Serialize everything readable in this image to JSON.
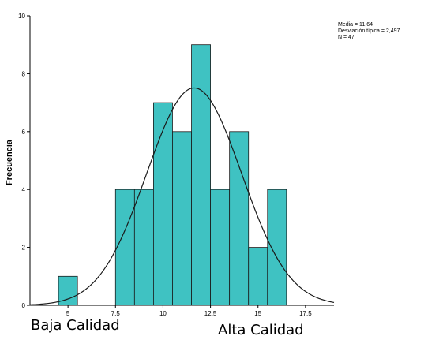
{
  "chart_data": {
    "type": "bar",
    "ylabel": "Frecuencia",
    "xlim": [
      3,
      19
    ],
    "ylim": [
      0,
      10
    ],
    "xticks": [
      {
        "value": 5,
        "label": "5"
      },
      {
        "value": 7.5,
        "label": "7,5"
      },
      {
        "value": 10,
        "label": "10"
      },
      {
        "value": 12.5,
        "label": "12,5"
      },
      {
        "value": 15,
        "label": "15"
      },
      {
        "value": 17.5,
        "label": "17,5"
      }
    ],
    "yticks": [
      {
        "value": 0,
        "label": "0"
      },
      {
        "value": 2,
        "label": "2"
      },
      {
        "value": 4,
        "label": "4"
      },
      {
        "value": 6,
        "label": "6"
      },
      {
        "value": 8,
        "label": "8"
      },
      {
        "value": 10,
        "label": "10"
      }
    ],
    "bins": [
      {
        "start": 4.5,
        "end": 5.5,
        "value": 1
      },
      {
        "start": 7.5,
        "end": 8.5,
        "value": 4
      },
      {
        "start": 8.5,
        "end": 9.5,
        "value": 4
      },
      {
        "start": 9.5,
        "end": 10.5,
        "value": 7
      },
      {
        "start": 10.5,
        "end": 11.5,
        "value": 6
      },
      {
        "start": 11.5,
        "end": 12.5,
        "value": 9
      },
      {
        "start": 12.5,
        "end": 13.5,
        "value": 4
      },
      {
        "start": 13.5,
        "end": 14.5,
        "value": 6
      },
      {
        "start": 14.5,
        "end": 15.5,
        "value": 2
      },
      {
        "start": 15.5,
        "end": 16.5,
        "value": 4
      }
    ],
    "normal_curve": {
      "mean": 11.64,
      "sd": 2.497,
      "n": 47,
      "bin_width": 1
    },
    "stats": [
      "Media = 11,64",
      "Desviación típica = 2,497",
      "N = 47"
    ],
    "annotations": {
      "low": "Baja Calidad",
      "high": "Alta Calidad"
    },
    "colors": {
      "bar_fill": "#3fc2c2",
      "bar_stroke": "#1a1a1a",
      "curve": "#1a1a1a"
    }
  }
}
